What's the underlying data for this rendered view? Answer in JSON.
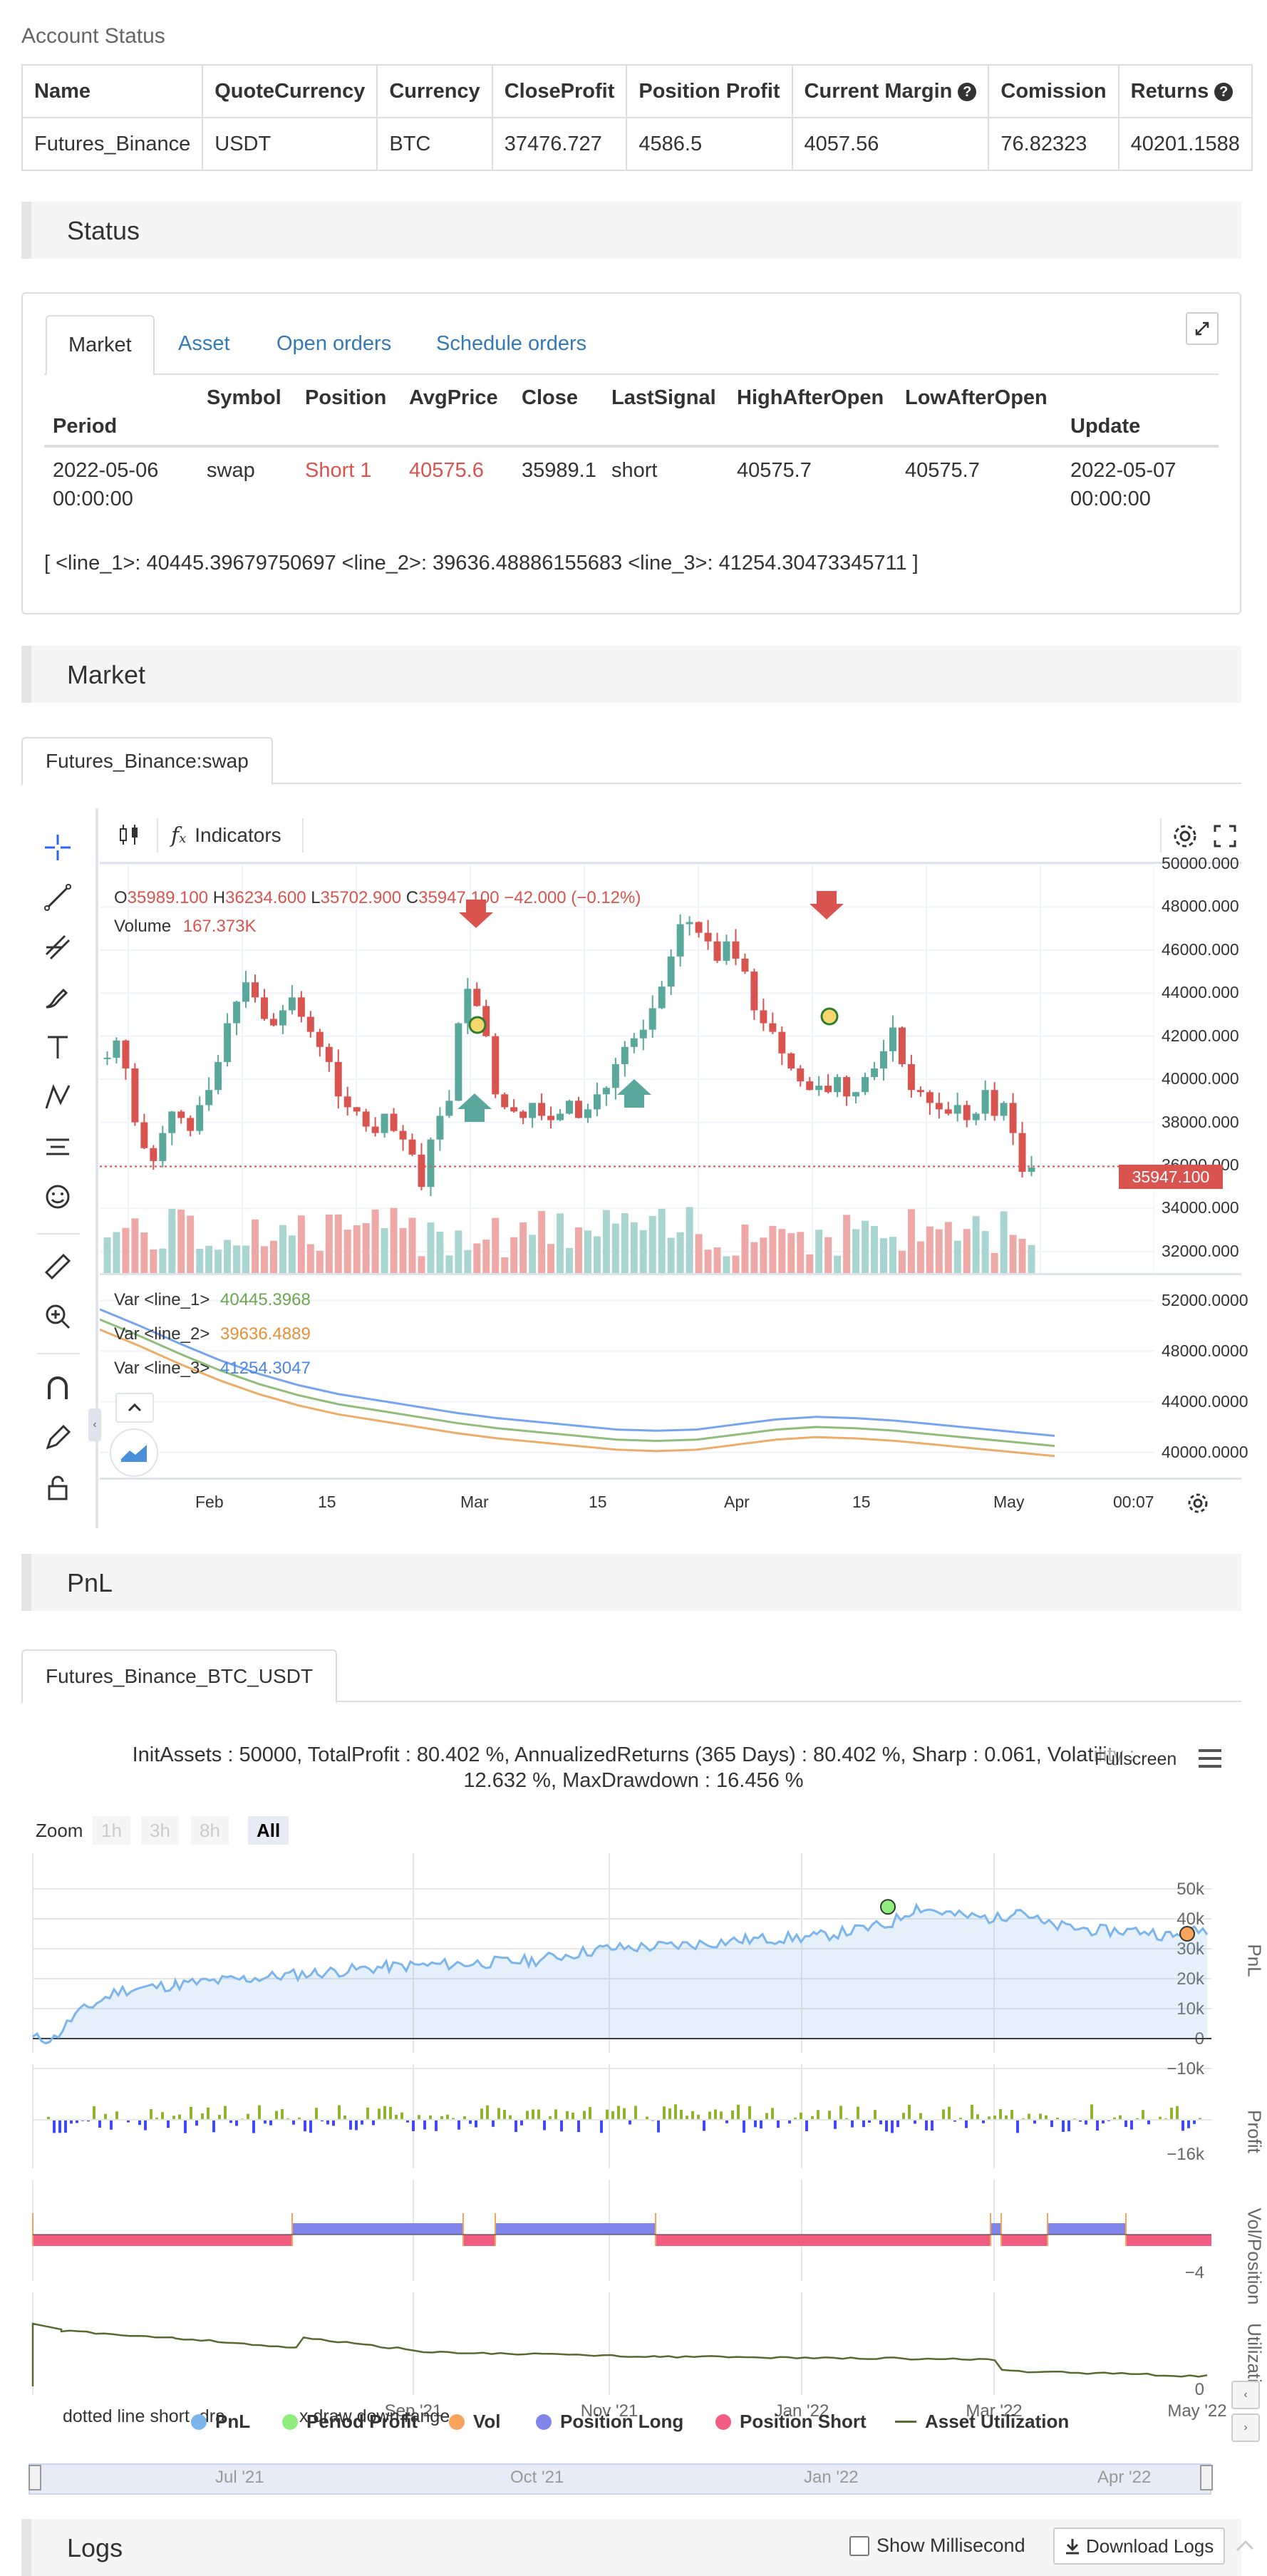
{
  "account": {
    "title": "Account Status",
    "headers": [
      "Name",
      "QuoteCurrency",
      "Currency",
      "CloseProfit",
      "Position Profit",
      "Current Margin",
      "Comission",
      "Returns"
    ],
    "row": [
      "Futures_Binance",
      "USDT",
      "BTC",
      "37476.727",
      "4586.5",
      "4057.56",
      "76.82323",
      "40201.1588"
    ]
  },
  "status": {
    "section_title": "Status",
    "tabs": [
      "Market",
      "Asset",
      "Open orders",
      "Schedule orders"
    ],
    "columns": [
      "Period",
      "Symbol",
      "Position",
      "AvgPrice",
      "Close",
      "LastSignal",
      "HighAfterOpen",
      "LowAfterOpen",
      "Update"
    ],
    "row": {
      "period": "2022-05-06",
      "period_time": "00:00:00",
      "symbol": "swap",
      "position": "Short 1",
      "avgprice": "40575.6",
      "close": "35989.1",
      "lastsignal": "short",
      "high": "40575.7",
      "low": "40575.7",
      "update": "2022-05-07",
      "update_time": "00:00:00"
    },
    "lines_text": "[ <line_1>: 40445.39679750697 <line_2>: 39636.48886155683 <line_3>: 41254.30473345711 ]"
  },
  "market": {
    "section_title": "Market",
    "tab": "Futures_Binance:swap",
    "indicators_label": "Indicators",
    "ohlc": {
      "o_label": "O",
      "o": "35989.100",
      "h_label": "H",
      "h": "36234.600",
      "l_label": "L",
      "l": "35702.900",
      "c_label": "C",
      "c": "35947.100",
      "chg": "−42.000 (−0.12%)"
    },
    "volume_label": "Volume",
    "volume_value": "167.373K",
    "last_price": "35947.100",
    "price_ticks": [
      "50000.000",
      "48000.000",
      "46000.000",
      "44000.000",
      "42000.000",
      "40000.000",
      "38000.000",
      "36000.000",
      "34000.000",
      "32000.000"
    ],
    "ind_ticks": [
      "52000.0000",
      "48000.0000",
      "44000.0000",
      "40000.0000"
    ],
    "x_ticks": [
      "Feb",
      "15",
      "Mar",
      "15",
      "Apr",
      "15",
      "May",
      "00:07"
    ],
    "vars": [
      {
        "label": "Var",
        "name": "<line_1>",
        "value": "40445.3968",
        "color": "#6aa84f"
      },
      {
        "label": "Var",
        "name": "<line_2>",
        "value": "39636.4889",
        "color": "#e69138"
      },
      {
        "label": "Var",
        "name": "<line_3>",
        "value": "41254.3047",
        "color": "#4a86e8"
      }
    ],
    "colors": {
      "up": "#5aa79c",
      "down": "#d9534f",
      "vol_up": "#a8d5cf",
      "vol_down": "#eea9a6"
    }
  },
  "pnl": {
    "section_title": "PnL",
    "tab": "Futures_Binance_BTC_USDT",
    "summary_line1": "InitAssets : 50000, TotalProfit : 80.402 %, AnnualizedReturns (365 Days) : 80.402 %, Sharp : 0.061, Volatility :",
    "summary_line2": "12.632 %, MaxDrawdown : 16.456 %",
    "fullscreen": "Fullscreen",
    "zoom_label": "Zoom",
    "zoom_buttons": [
      "1h",
      "3h",
      "8h",
      "All"
    ],
    "pnl_ticks": [
      "50k",
      "40k",
      "30k",
      "20k",
      "10k",
      "0",
      "−10k"
    ],
    "profit_ticks": [
      "−16k"
    ],
    "vol_ticks": [
      "−4"
    ],
    "util_ticks": [
      "0"
    ],
    "axis_titles": [
      "PnL",
      "Profit",
      "Vol/Position",
      "Utilization"
    ],
    "x_ticks": [
      "Sep '21",
      "Nov '21",
      "Jan '22",
      "Mar '22",
      "May '22"
    ],
    "nav_ticks": [
      "Jul '21",
      "Oct '21",
      "Jan '22",
      "Apr '22"
    ],
    "tooltip_text": "dotted line short, dra",
    "tooltip_text2": "x draw down range",
    "legend": [
      {
        "label": "PnL",
        "color": "#7cb5ec"
      },
      {
        "label": "Period Profit",
        "color": "#90ed7d"
      },
      {
        "label": "Vol",
        "color": "#f7a35c"
      },
      {
        "label": "Position Long",
        "color": "#8085e9"
      },
      {
        "label": "Position Short",
        "color": "#f15c80"
      },
      {
        "label": "Asset Utilization",
        "color": "#556b2f"
      }
    ]
  },
  "logs": {
    "section_title": "Logs",
    "show_ms": "Show Millisecond",
    "download": "Download Logs"
  }
}
